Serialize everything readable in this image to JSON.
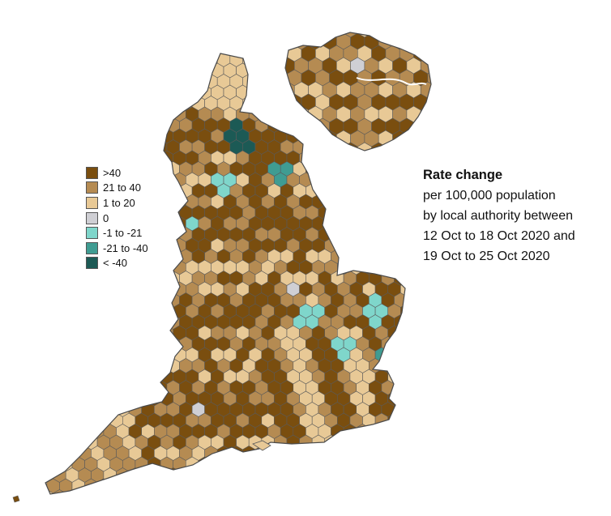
{
  "caption": {
    "title": "Rate change",
    "lines": [
      "per 100,000 population",
      "by local authority between",
      "12 Oct to 18 Oct 2020 and",
      "19 Oct to 25 Oct 2020"
    ]
  },
  "legend": {
    "items": [
      {
        "label": ">40",
        "color": "#7a4e0f"
      },
      {
        "label": "21 to 40",
        "color": "#b58b52"
      },
      {
        "label": "1 to 20",
        "color": "#e8c996"
      },
      {
        "label": "0",
        "color": "#cfcfd4"
      },
      {
        "label": "-1 to -21",
        "color": "#7fd6cb"
      },
      {
        "label": "-21 to -40",
        "color": "#3f9c92"
      },
      {
        "label": "< -40",
        "color": "#1c5a55"
      }
    ]
  },
  "colors": {
    "border": "#5a5a5a"
  }
}
